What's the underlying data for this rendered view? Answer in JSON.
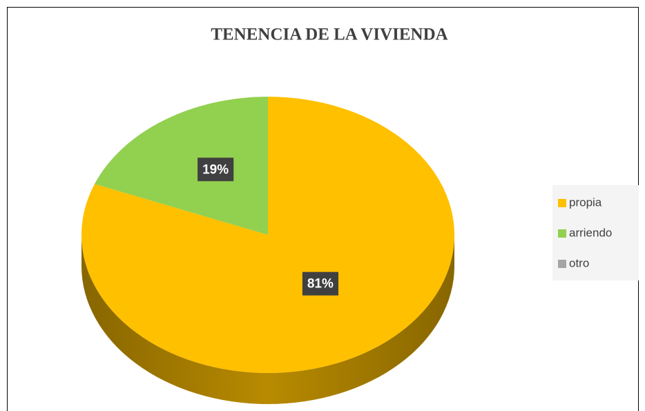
{
  "chart_data": {
    "type": "pie",
    "title": "TENENCIA DE LA VIVIENDA",
    "categories": [
      "propia",
      "arriendo",
      "otro"
    ],
    "values": [
      81,
      19,
      0
    ],
    "value_labels": [
      "81%",
      "19%",
      null
    ],
    "colors": [
      "#ffc000",
      "#92d050",
      "#a5a5a5"
    ],
    "legend": "right"
  }
}
